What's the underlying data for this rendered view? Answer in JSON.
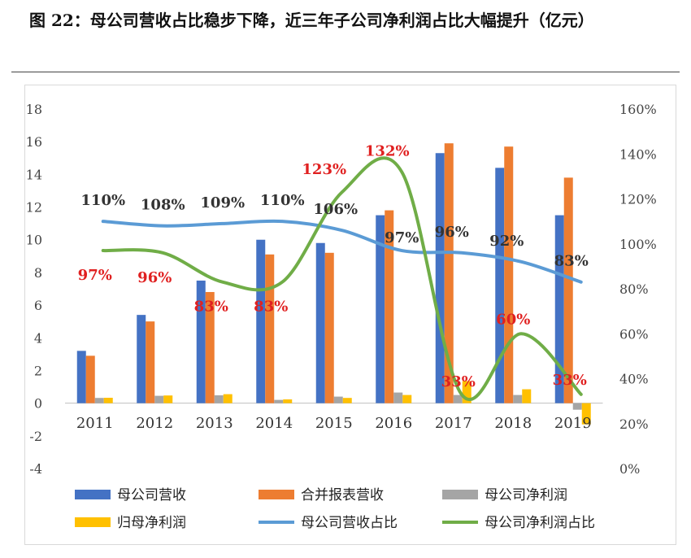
{
  "header": {
    "title": "图 22：母公司营收占比稳步下降，近三年子公司净利润占比大幅提升（亿元）"
  },
  "chart_data": {
    "type": "bar",
    "categories": [
      "2011",
      "2012",
      "2013",
      "2014",
      "2015",
      "2016",
      "2017",
      "2018",
      "2019"
    ],
    "y_left": {
      "min": -4,
      "max": 18,
      "ticks": [
        "-4",
        "-2",
        "0",
        "2",
        "4",
        "6",
        "8",
        "10",
        "12",
        "14",
        "16",
        "18"
      ]
    },
    "y_right": {
      "min": 0,
      "max": 160,
      "ticks": [
        "0%",
        "20%",
        "40%",
        "60%",
        "80%",
        "100%",
        "120%",
        "140%",
        "160%"
      ]
    },
    "bar_series": [
      {
        "name": "母公司营收",
        "color": "#4472C4",
        "values": [
          3.2,
          5.4,
          7.5,
          10.0,
          9.8,
          11.5,
          15.3,
          14.4,
          11.5
        ]
      },
      {
        "name": "合并报表营收",
        "color": "#ED7D31",
        "values": [
          2.9,
          5.0,
          6.8,
          9.1,
          9.2,
          11.8,
          15.9,
          15.7,
          13.8
        ]
      },
      {
        "name": "母公司净利润",
        "color": "#A5A5A5",
        "values": [
          0.32,
          0.45,
          0.48,
          0.2,
          0.4,
          0.65,
          0.5,
          0.5,
          -0.4
        ]
      },
      {
        "name": "归母净利润",
        "color": "#FFC000",
        "values": [
          0.33,
          0.47,
          0.55,
          0.23,
          0.32,
          0.5,
          1.35,
          0.85,
          -1.3
        ]
      }
    ],
    "line_series": [
      {
        "name": "母公司营收占比",
        "color": "#5B9BD5",
        "values": [
          110,
          108,
          109,
          110,
          106,
          97,
          96,
          92,
          83
        ],
        "labels": [
          "110%",
          "108%",
          "109%",
          "110%",
          "106%",
          "97%",
          "96%",
          "92%",
          "83%"
        ],
        "label_color": "#333333"
      },
      {
        "name": "母公司净利润占比",
        "color": "#70AD47",
        "values": [
          97,
          96,
          83,
          83,
          123,
          132,
          33,
          60,
          33
        ],
        "labels": [
          "97%",
          "96%",
          "83%",
          "83%",
          "123%",
          "132%",
          "33%",
          "60%",
          "33%"
        ],
        "label_color": "#E02020"
      }
    ],
    "legend": [
      "母公司营收",
      "合并报表营收",
      "母公司净利润",
      "归母净利润",
      "母公司营收占比",
      "母公司净利润占比"
    ],
    "legend_position": "bottom"
  }
}
